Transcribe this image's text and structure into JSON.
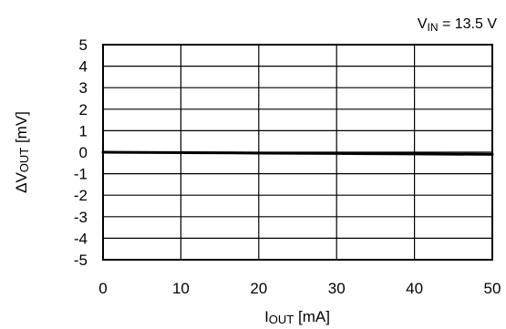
{
  "chart_data": {
    "type": "line",
    "annotation": {
      "base": "V",
      "subscript": "IN",
      "suffix": " = 13.5 V"
    },
    "xlabel": {
      "base": "I",
      "subscript": "OUT",
      "suffix": " [mA]"
    },
    "ylabel": {
      "prefix": "ΔV",
      "subscript": "OUT",
      "suffix": " [mV]"
    },
    "xlim": [
      0,
      50
    ],
    "ylim": [
      -5,
      5
    ],
    "x_ticks": [
      0,
      10,
      20,
      30,
      40,
      50
    ],
    "y_ticks": [
      5,
      4,
      3,
      2,
      1,
      0,
      -1,
      -2,
      -3,
      -4,
      -5
    ],
    "grid": true,
    "series": [
      {
        "x": [
          0,
          10,
          20,
          30,
          40,
          50
        ],
        "y": [
          0,
          -0.02,
          -0.04,
          -0.06,
          -0.08,
          -0.1
        ]
      }
    ]
  }
}
